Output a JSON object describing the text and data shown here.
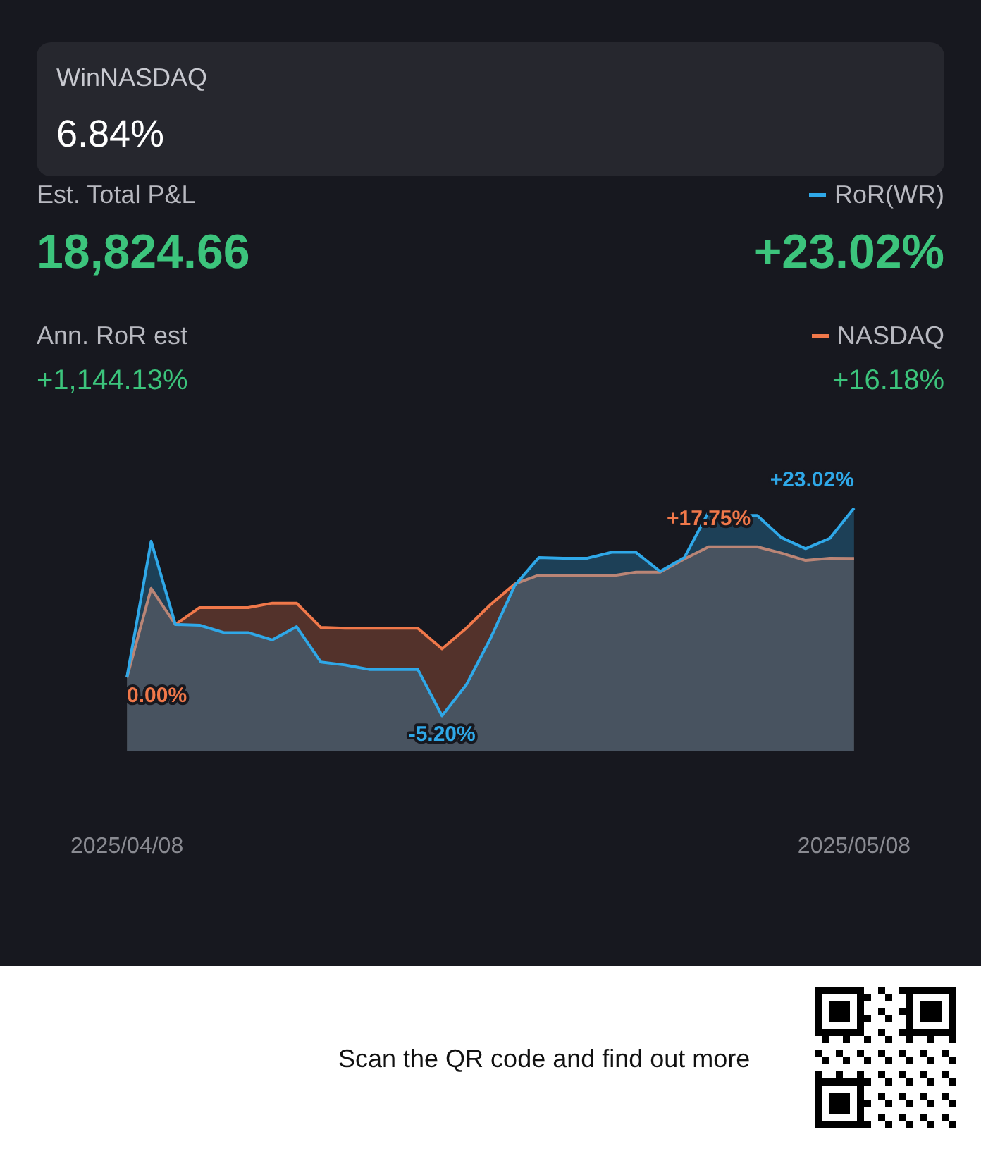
{
  "chart_data": {
    "type": "area",
    "title": "WinNASDAQ",
    "subtitle": "6.84%",
    "annotations": [
      "Est. Total P&L",
      "18,824.66",
      "Ann. RoR est",
      "+1,144.13%",
      "+23.02%",
      "+16.18%",
      "Scan the QR code and find out more"
    ],
    "categories": [
      "2025/04/08",
      null,
      null,
      null,
      null,
      null,
      null,
      null,
      null,
      null,
      null,
      null,
      null,
      null,
      null,
      null,
      null,
      null,
      null,
      null,
      null,
      null,
      null,
      null,
      null,
      null,
      null,
      null,
      null,
      null,
      "2025/05/08"
    ],
    "series": [
      {
        "name": "RoR(WR)",
        "color": "#2fa8e8",
        "values": [
          0,
          18.5,
          7.2,
          7.1,
          6.1,
          6.1,
          5.1,
          6.9,
          2.1,
          1.7,
          1.1,
          1.1,
          1.1,
          -5.2,
          -1.0,
          5.3,
          12.5,
          16.3,
          16.2,
          16.2,
          17.0,
          17.0,
          14.4,
          16.3,
          22.5,
          22.0,
          22.0,
          19.0,
          17.5,
          18.9,
          23.02
        ],
        "value_labels": [
          null,
          null,
          null,
          null,
          null,
          null,
          null,
          null,
          null,
          null,
          null,
          null,
          null,
          "-5.20%",
          null,
          null,
          null,
          null,
          null,
          null,
          null,
          null,
          null,
          null,
          null,
          null,
          null,
          null,
          null,
          null,
          "+23.02%"
        ]
      },
      {
        "name": "NASDAQ",
        "color": "#f0784a",
        "values": [
          0,
          12.1,
          7.2,
          9.5,
          9.5,
          9.5,
          10.1,
          10.1,
          6.8,
          6.7,
          6.7,
          6.7,
          6.7,
          3.9,
          6.7,
          9.9,
          12.7,
          13.9,
          13.9,
          13.8,
          13.8,
          14.3,
          14.3,
          16.1,
          17.75,
          17.75,
          17.75,
          16.9,
          15.9,
          16.2,
          16.18
        ],
        "value_labels": [
          "0.00%",
          null,
          null,
          null,
          null,
          null,
          null,
          null,
          null,
          null,
          null,
          null,
          null,
          null,
          null,
          null,
          null,
          null,
          null,
          null,
          null,
          null,
          null,
          null,
          "+17.75%",
          null,
          null,
          null,
          null,
          null,
          null
        ]
      }
    ],
    "legend": "top right"
  }
}
